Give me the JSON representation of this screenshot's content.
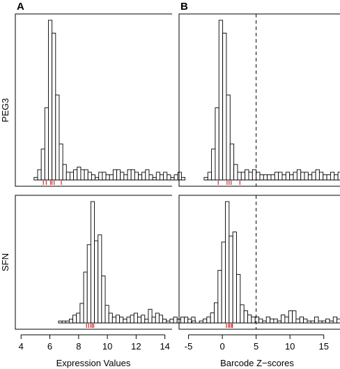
{
  "panel_letters": [
    "A",
    "B"
  ],
  "row_labels": [
    "PEG3",
    "SFN"
  ],
  "x_axis_titles": [
    "Expression Values",
    "Barcode Z−scores"
  ],
  "colors": {
    "bars": "#ffffff",
    "bar_stroke": "#000000",
    "rug": "#d62728",
    "threshold_line": "#000000"
  },
  "chart_data": [
    {
      "type": "bar",
      "subtype": "histogram",
      "panel": "A",
      "row": "PEG3",
      "xlabel": "Expression Values",
      "xlim": [
        3.6,
        14.5
      ],
      "xticks": [
        4,
        6,
        8,
        10,
        12,
        14
      ],
      "show_x_axis": false,
      "bin_width": 0.25,
      "bin_start": 4.9,
      "counts": [
        1,
        4,
        12,
        28,
        62,
        57,
        33,
        14,
        6,
        3,
        3,
        4,
        5,
        4,
        4,
        3,
        2,
        1,
        3,
        3,
        2,
        2,
        4,
        4,
        3,
        2,
        4,
        4,
        3,
        2,
        3,
        4,
        2,
        1,
        3,
        2,
        3,
        2,
        1,
        2,
        3,
        1
      ],
      "rug": [
        5.55,
        5.75,
        6.05,
        6.15,
        6.3,
        6.8
      ]
    },
    {
      "type": "bar",
      "subtype": "histogram",
      "panel": "B",
      "row": "PEG3",
      "xlabel": "Barcode Z−scores",
      "xlim": [
        -6.4,
        17.4
      ],
      "xticks": [
        -5,
        0,
        5,
        10,
        15
      ],
      "show_x_axis": false,
      "bin_width": 0.55,
      "bin_start": -2.7,
      "counts": [
        1,
        3,
        12,
        28,
        62,
        57,
        33,
        14,
        6,
        3,
        3,
        4,
        3,
        4,
        3,
        2,
        2,
        2,
        2,
        3,
        3,
        2,
        3,
        2,
        3,
        4,
        3,
        3,
        2,
        3,
        4,
        3,
        2,
        2,
        3,
        2,
        3,
        4,
        2,
        3,
        3,
        4,
        3,
        1
      ],
      "rug": [
        -0.6,
        0.7,
        1.0,
        1.3,
        2.6
      ],
      "threshold": 5
    },
    {
      "type": "bar",
      "subtype": "histogram",
      "panel": "A",
      "row": "SFN",
      "xlabel": "Expression Values",
      "xlim": [
        3.6,
        14.5
      ],
      "xticks": [
        4,
        6,
        8,
        10,
        12,
        14
      ],
      "show_x_axis": true,
      "bin_width": 0.25,
      "bin_start": 6.6,
      "counts": [
        1,
        1,
        1,
        2,
        4,
        5,
        10,
        26,
        40,
        62,
        42,
        45,
        24,
        9,
        5,
        3,
        4,
        3,
        2,
        3,
        4,
        5,
        3,
        4,
        2,
        7,
        3,
        5,
        4,
        2,
        1,
        2,
        3,
        2,
        3,
        3,
        2,
        3
      ],
      "rug": [
        8.55,
        8.7,
        8.85,
        8.95,
        9.05
      ]
    },
    {
      "type": "bar",
      "subtype": "histogram",
      "panel": "B",
      "row": "SFN",
      "xlabel": "Barcode Z−scores",
      "xlim": [
        -6.4,
        17.4
      ],
      "xticks": [
        -5,
        0,
        5,
        10,
        15
      ],
      "show_x_axis": true,
      "bin_width": 0.55,
      "bin_start": -4.5,
      "counts": [
        1,
        0,
        1,
        2,
        3,
        5,
        10,
        26,
        40,
        60,
        43,
        45,
        24,
        9,
        6,
        4,
        3,
        3,
        2,
        1,
        3,
        2,
        2,
        1,
        4,
        3,
        6,
        6,
        2,
        3,
        2,
        1,
        1,
        3,
        1,
        1,
        2,
        1,
        3,
        2,
        1,
        1,
        1
      ],
      "rug": [
        0.6,
        0.9,
        1.1,
        1.35,
        1.5
      ],
      "threshold": 5
    }
  ]
}
